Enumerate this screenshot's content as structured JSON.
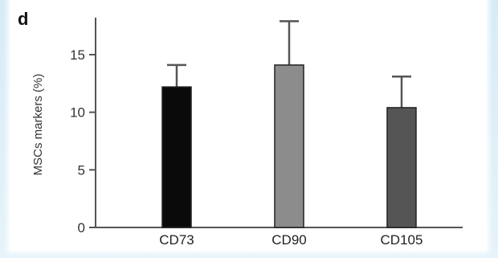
{
  "chart_data": {
    "type": "bar",
    "panel_label": "d",
    "ylabel": "MSCs markers (%)",
    "xlabel": "",
    "ylim": [
      0,
      17.5
    ],
    "yticks": [
      0,
      5,
      10,
      15
    ],
    "categories": [
      "CD73",
      "CD90",
      "CD105"
    ],
    "values": [
      12.2,
      14.1,
      10.4
    ],
    "errors": [
      1.9,
      3.8,
      2.7
    ],
    "colors": [
      "#0a0a0a",
      "#8c8c8c",
      "#555555"
    ],
    "grid": false,
    "legend": "none"
  }
}
